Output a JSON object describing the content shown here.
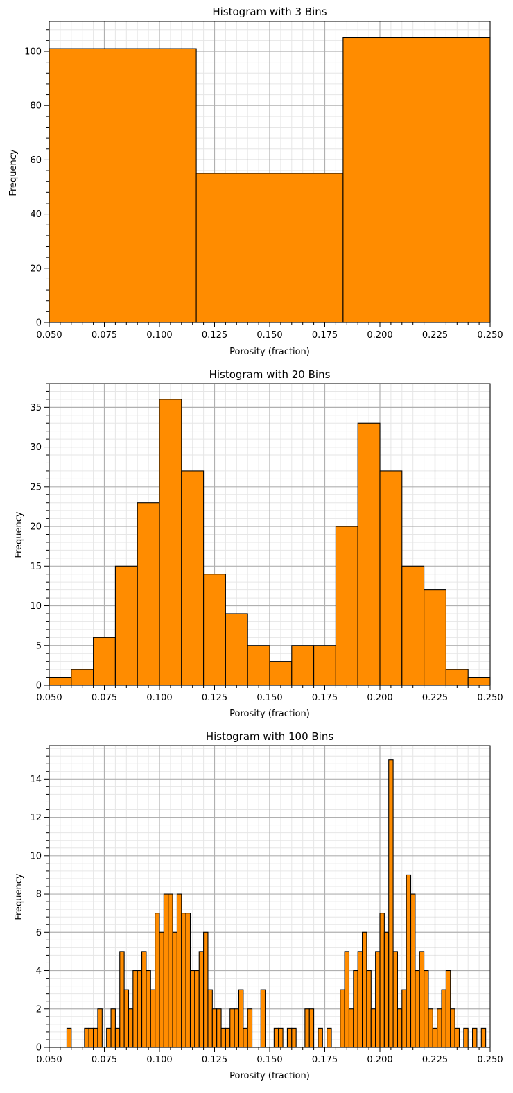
{
  "colors": {
    "bar_fill": "#ff8c00",
    "bar_edge": "#000000",
    "major_grid": "#b0b0b0",
    "minor_grid": "#e6e6e6"
  },
  "chart_data": [
    {
      "type": "bar",
      "title": "Histogram with 3 Bins",
      "xlabel": "Porosity (fraction)",
      "ylabel": "Frequency",
      "xlim": [
        0.05,
        0.25
      ],
      "ylim": [
        0,
        111
      ],
      "xticks": [
        "0.050",
        "0.075",
        "0.100",
        "0.125",
        "0.150",
        "0.175",
        "0.200",
        "0.225",
        "0.250"
      ],
      "yticks": [
        "0",
        "20",
        "40",
        "60",
        "80",
        "100"
      ],
      "grid": true,
      "bin_edges": [
        0.05,
        0.1167,
        0.1833,
        0.25
      ],
      "values": [
        101,
        55,
        105
      ]
    },
    {
      "type": "bar",
      "title": "Histogram with 20 Bins",
      "xlabel": "Porosity (fraction)",
      "ylabel": "Frequency",
      "xlim": [
        0.05,
        0.25
      ],
      "ylim": [
        0,
        38
      ],
      "xticks": [
        "0.050",
        "0.075",
        "0.100",
        "0.125",
        "0.150",
        "0.175",
        "0.200",
        "0.225",
        "0.250"
      ],
      "yticks": [
        "0",
        "5",
        "10",
        "15",
        "20",
        "25",
        "30",
        "35"
      ],
      "grid": true,
      "bin_edges": [
        0.05,
        0.06,
        0.07,
        0.08,
        0.09,
        0.1,
        0.11,
        0.12,
        0.13,
        0.14,
        0.15,
        0.16,
        0.17,
        0.18,
        0.19,
        0.2,
        0.21,
        0.22,
        0.23,
        0.24,
        0.25
      ],
      "values": [
        1,
        2,
        6,
        15,
        23,
        36,
        27,
        14,
        9,
        5,
        3,
        5,
        5,
        20,
        33,
        27,
        15,
        12,
        2,
        1
      ]
    },
    {
      "type": "bar",
      "title": "Histogram with 100 Bins",
      "xlabel": "Porosity (fraction)",
      "ylabel": "Frequency",
      "xlim": [
        0.05,
        0.25
      ],
      "ylim": [
        0,
        15.75
      ],
      "xticks": [
        "0.050",
        "0.075",
        "0.100",
        "0.125",
        "0.150",
        "0.175",
        "0.200",
        "0.225",
        "0.250"
      ],
      "yticks": [
        "0",
        "2",
        "4",
        "6",
        "8",
        "10",
        "12",
        "14"
      ],
      "grid": true,
      "bin_range": [
        0.05,
        0.25
      ],
      "bin_count": 100,
      "values": [
        0,
        0,
        0,
        0,
        1,
        0,
        0,
        0,
        1,
        1,
        1,
        2,
        0,
        1,
        2,
        1,
        5,
        3,
        2,
        4,
        4,
        5,
        4,
        3,
        7,
        6,
        8,
        8,
        6,
        8,
        7,
        7,
        4,
        4,
        5,
        6,
        3,
        2,
        2,
        1,
        1,
        2,
        2,
        3,
        1,
        2,
        0,
        0,
        3,
        0,
        0,
        1,
        1,
        0,
        1,
        1,
        0,
        0,
        2,
        2,
        0,
        1,
        0,
        1,
        0,
        0,
        3,
        5,
        2,
        4,
        5,
        6,
        4,
        2,
        5,
        7,
        6,
        15,
        5,
        2,
        3,
        9,
        8,
        4,
        5,
        4,
        2,
        1,
        2,
        3,
        4,
        2,
        1,
        0,
        1,
        0,
        1,
        0,
        1,
        0
      ]
    }
  ]
}
